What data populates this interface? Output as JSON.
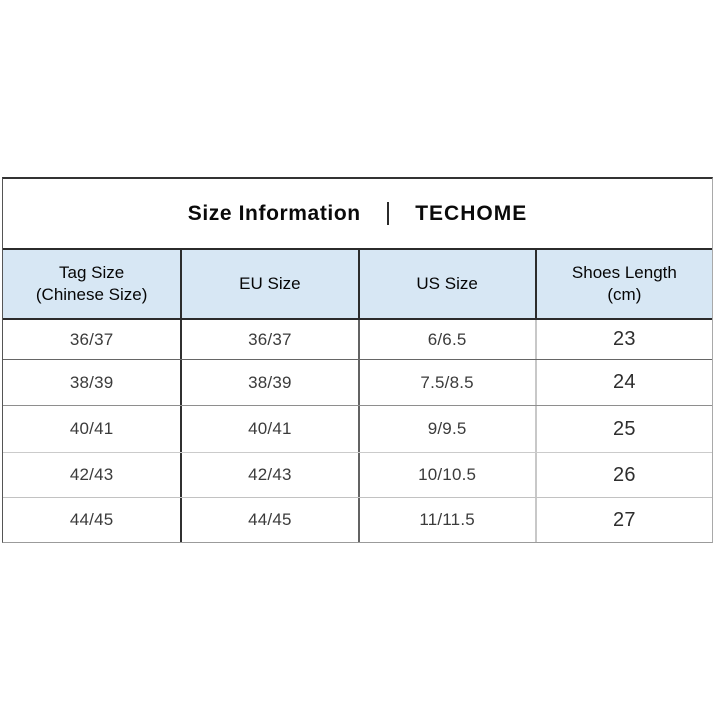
{
  "title": {
    "left": "Size Information",
    "separator": "|",
    "brand": "TECHOME"
  },
  "table": {
    "header": {
      "bg_color": "#d7e7f4",
      "columns": [
        {
          "line1": "Tag Size",
          "line2": "(Chinese Size)"
        },
        {
          "line1": "EU Size",
          "line2": ""
        },
        {
          "line1": "US Size",
          "line2": ""
        },
        {
          "line1": "Shoes Length",
          "line2": "(cm)"
        }
      ]
    },
    "rows": [
      {
        "tag_size": "36/37",
        "eu_size": "36/37",
        "us_size": "6/6.5",
        "shoes_length_cm": "23"
      },
      {
        "tag_size": "38/39",
        "eu_size": "38/39",
        "us_size": "7.5/8.5",
        "shoes_length_cm": "24"
      },
      {
        "tag_size": "40/41",
        "eu_size": "40/41",
        "us_size": "9/9.5",
        "shoes_length_cm": "25"
      },
      {
        "tag_size": "42/43",
        "eu_size": "42/43",
        "us_size": "10/10.5",
        "shoes_length_cm": "26"
      },
      {
        "tag_size": "44/45",
        "eu_size": "44/45",
        "us_size": "11/11.5",
        "shoes_length_cm": "27"
      }
    ]
  },
  "colors": {
    "header_bg": "#d7e7f4",
    "border_dark": "#2b2b2b",
    "border_mid": "#666666",
    "border_light": "#c8c8c8",
    "text_dark": "#0a0a0a",
    "text_cell": "#3b3b3b"
  },
  "chart_data": {
    "type": "table",
    "title": "Size Information | TECHOME",
    "columns": [
      "Tag Size (Chinese Size)",
      "EU Size",
      "US Size",
      "Shoes Length (cm)"
    ],
    "rows": [
      [
        "36/37",
        "36/37",
        "6/6.5",
        "23"
      ],
      [
        "38/39",
        "38/39",
        "7.5/8.5",
        "24"
      ],
      [
        "40/41",
        "40/41",
        "9/9.5",
        "25"
      ],
      [
        "42/43",
        "42/43",
        "10/10.5",
        "26"
      ],
      [
        "44/45",
        "44/45",
        "11/11.5",
        "27"
      ]
    ]
  }
}
